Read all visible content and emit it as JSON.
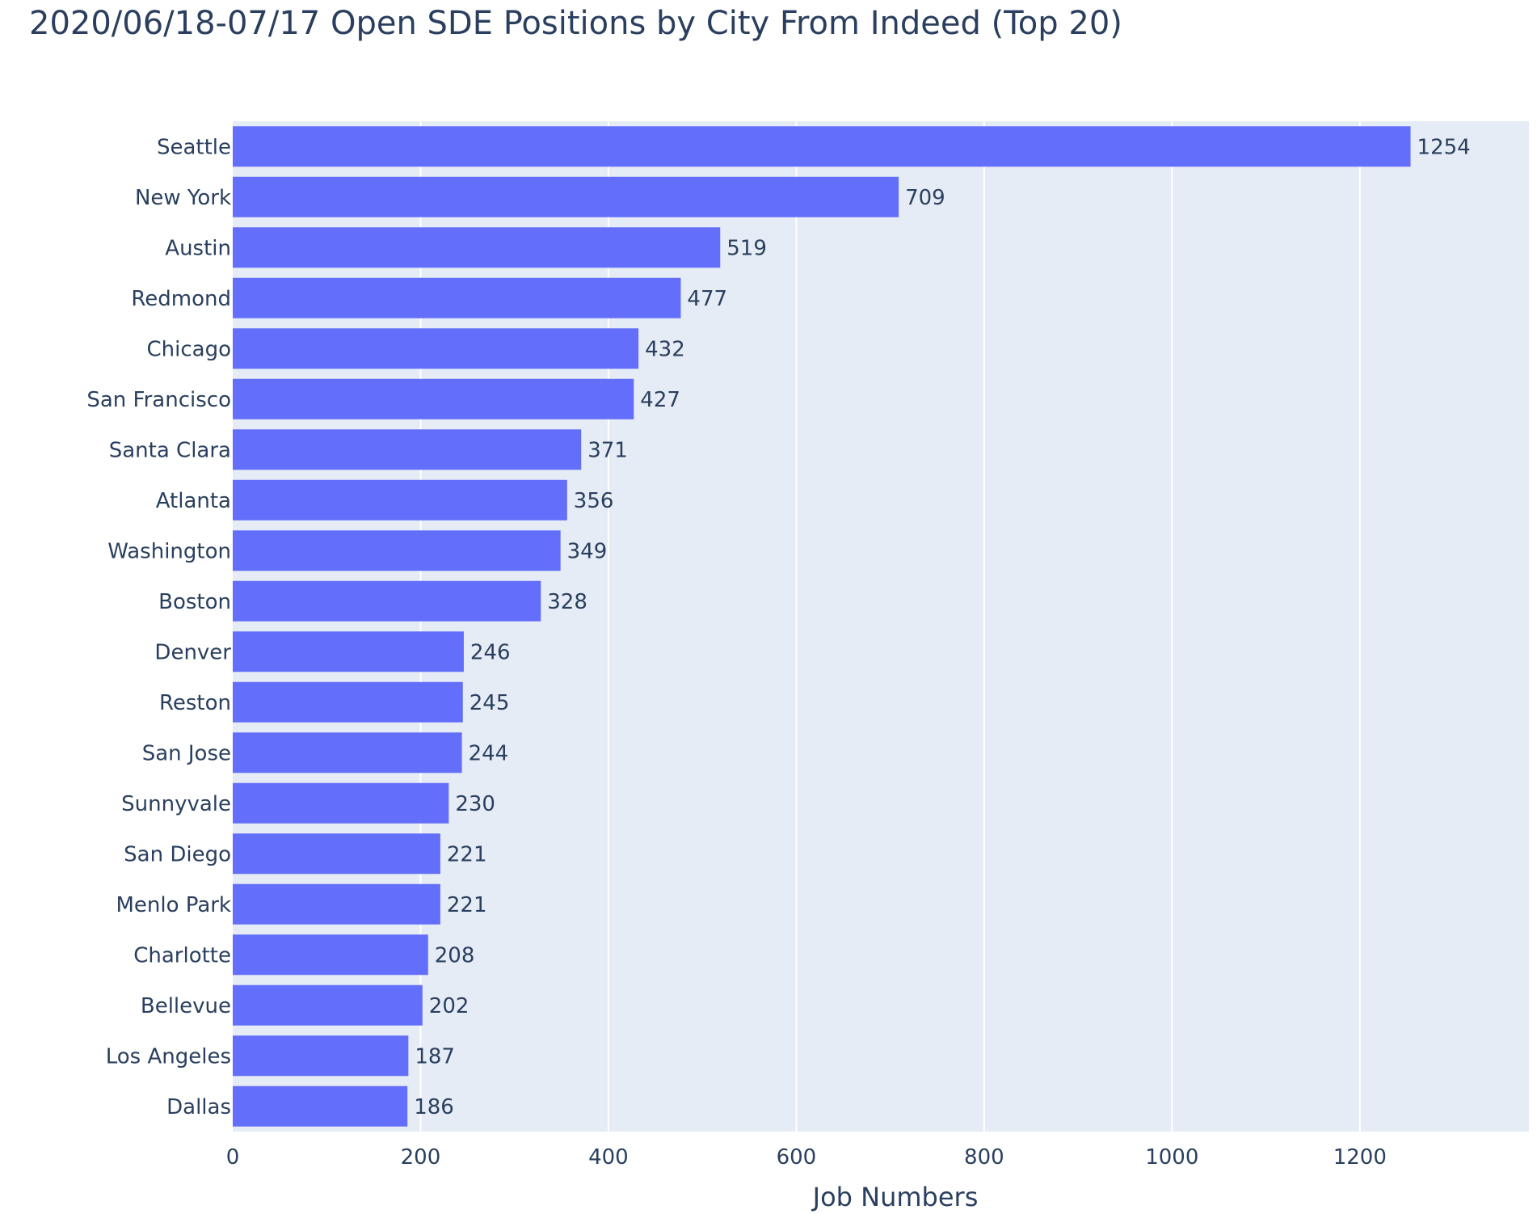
{
  "chart_data": {
    "type": "bar",
    "orientation": "horizontal",
    "title": "2020/06/18-07/17 Open SDE Positions by City From Indeed (Top 20)",
    "xlabel": "Job Numbers",
    "ylabel": "",
    "xlim": [
      0,
      1380
    ],
    "xticks": [
      0,
      200,
      400,
      600,
      800,
      1000,
      1200
    ],
    "grid": true,
    "colors": {
      "bar": "#636efa",
      "plot_bg": "#e5ecf6",
      "grid": "#ffffff",
      "text": "#2a3f5f"
    },
    "categories": [
      "Seattle",
      "New York",
      "Austin",
      "Redmond",
      "Chicago",
      "San Francisco",
      "Santa Clara",
      "Atlanta",
      "Washington",
      "Boston",
      "Denver",
      "Reston",
      "San Jose",
      "Sunnyvale",
      "San Diego",
      "Menlo Park",
      "Charlotte",
      "Bellevue",
      "Los Angeles",
      "Dallas"
    ],
    "values": [
      1254,
      709,
      519,
      477,
      432,
      427,
      371,
      356,
      349,
      328,
      246,
      245,
      244,
      230,
      221,
      221,
      208,
      202,
      187,
      186
    ]
  }
}
